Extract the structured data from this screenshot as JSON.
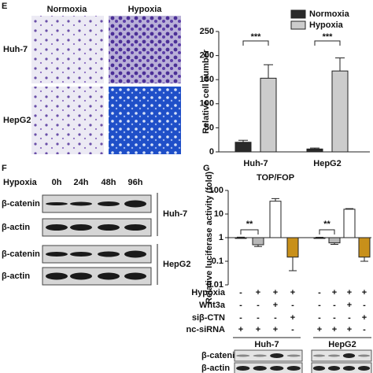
{
  "panel_labels": [
    "E",
    "F",
    "G"
  ],
  "micrographs": {
    "columns": [
      "Normoxia",
      "Hypoxia"
    ],
    "rows": [
      "Huh-7",
      "HepG2"
    ]
  },
  "chart_data": [
    {
      "type": "bar",
      "ylabel": "Relative cell number",
      "categories": [
        "Huh-7",
        "HepG2"
      ],
      "series": [
        {
          "name": "Normoxia",
          "color": "#2a2a2a",
          "values": [
            20,
            6
          ],
          "errors": [
            4,
            2
          ]
        },
        {
          "name": "Hypoxia",
          "color": "#cccccc",
          "values": [
            153,
            168
          ],
          "errors": [
            28,
            27
          ]
        }
      ],
      "annotations": [
        "***",
        "***"
      ],
      "ylim": [
        0,
        250
      ],
      "yticks": [
        0,
        50,
        100,
        150,
        200,
        250
      ],
      "legend": "top-right"
    },
    {
      "type": "bar",
      "title": "TOP/FOP",
      "ylabel": "Relative luciferase activity (fold)",
      "log_scale": true,
      "values": [
        1,
        0.5,
        35,
        0.15,
        1,
        0.6,
        16,
        0.15
      ],
      "errors": [
        0.05,
        0.08,
        10,
        0.11,
        0.04,
        0.08,
        1,
        0.05
      ],
      "colors": [
        "#ffffff",
        "#b8b8b8",
        "#ffffff",
        "#c8901a",
        "#ffffff",
        "#b8b8b8",
        "#ffffff",
        "#c8901a"
      ],
      "annotations": [
        "**",
        "**"
      ],
      "ylim": [
        0.01,
        100
      ],
      "yticks": [
        0.01,
        0.1,
        1,
        10,
        100
      ]
    }
  ],
  "western_blot": {
    "header": "Hypoxia",
    "timepoints": [
      "0h",
      "24h",
      "48h",
      "96h"
    ],
    "rows": [
      "β-catenin",
      "β-actin",
      "β-catenin",
      "β-actin"
    ],
    "cell_lines": [
      "Huh-7",
      "HepG2"
    ]
  },
  "conditions": {
    "rows": [
      {
        "label": "Hypoxia",
        "signs": [
          "-",
          "+",
          "+",
          "+",
          "-",
          "+",
          "+",
          "+"
        ]
      },
      {
        "label": "Wnt3a",
        "signs": [
          "-",
          "-",
          "+",
          "-",
          "-",
          "-",
          "+",
          "-"
        ]
      },
      {
        "label": "siβ-CTN",
        "signs": [
          "-",
          "-",
          "-",
          "+",
          "-",
          "-",
          "-",
          "+"
        ]
      },
      {
        "label": "nc-siRNA",
        "signs": [
          "+",
          "+",
          "+",
          "-",
          "+",
          "+",
          "+",
          "-"
        ]
      }
    ],
    "groups": [
      "Huh-7",
      "HepG2"
    ],
    "blot_rows": [
      "β-catenin",
      "β-actin"
    ]
  }
}
